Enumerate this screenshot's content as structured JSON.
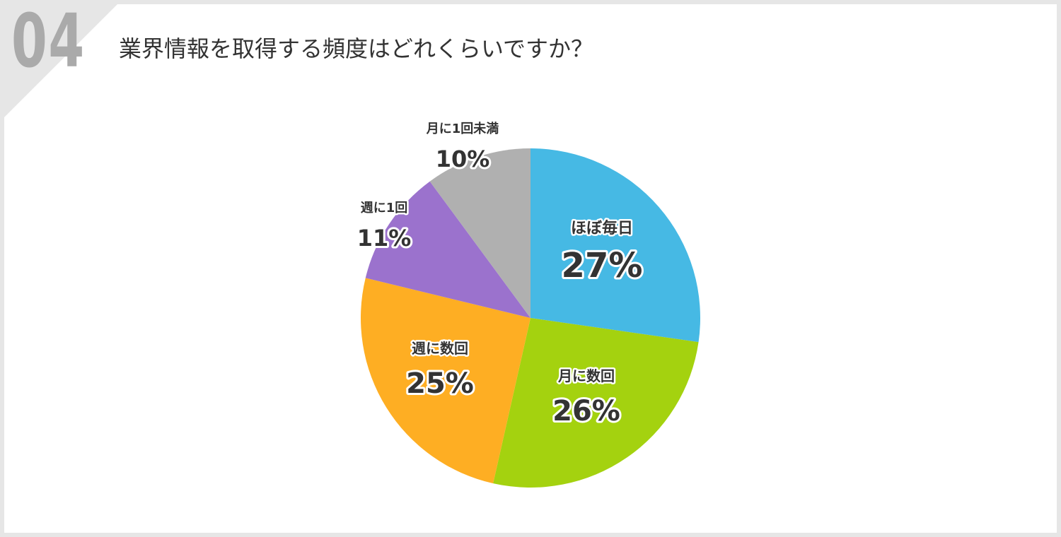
{
  "question_number": "04",
  "question_title": "業界情報を取得する頻度はどれくらいですか？",
  "colors": {
    "background": "#e6e6e6",
    "card": "#ffffff",
    "question_number": "#aaaaaa"
  },
  "chart_data": {
    "type": "pie",
    "title": "業界情報を取得する頻度はどれくらいですか？",
    "start_angle_deg": 0,
    "direction": "clockwise",
    "slices": [
      {
        "label": "ほぼ毎日",
        "value": 27,
        "value_label": "27%",
        "color": "#46b9e4"
      },
      {
        "label": "月に数回",
        "value": 26,
        "value_label": "26%",
        "color": "#a4d20f"
      },
      {
        "label": "週に数回",
        "value": 25,
        "value_label": "25%",
        "color": "#feae23"
      },
      {
        "label": "週に1回",
        "value": 11,
        "value_label": "11%",
        "color": "#9b72cd"
      },
      {
        "label": "月に1回未満",
        "value": 10,
        "value_label": "10%",
        "color": "#b0b0b0"
      }
    ]
  }
}
